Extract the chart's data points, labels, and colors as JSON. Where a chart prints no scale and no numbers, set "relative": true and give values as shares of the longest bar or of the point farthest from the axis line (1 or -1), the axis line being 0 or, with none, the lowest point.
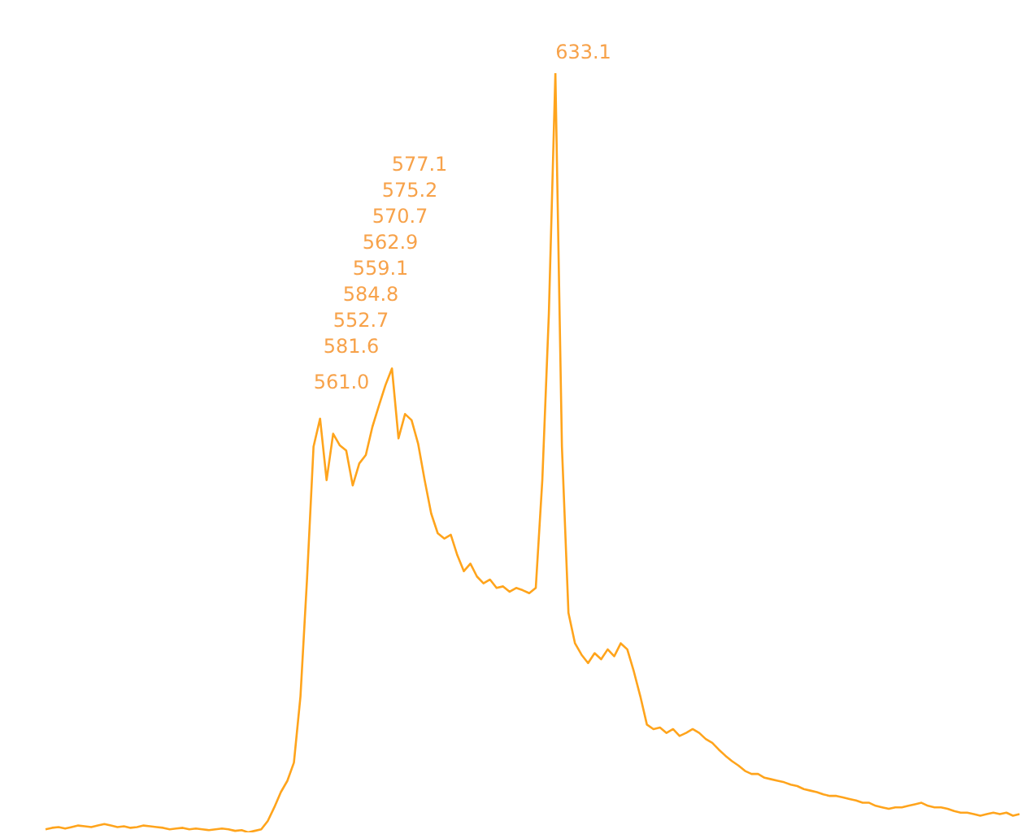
{
  "chart_data": {
    "type": "line",
    "relative": true,
    "tick_labels": false,
    "legend": false,
    "marker": "none",
    "line_style": "solid",
    "categories": [
      null,
      null,
      null,
      null,
      null,
      null,
      null,
      null,
      null,
      null,
      null,
      null,
      null,
      null,
      null,
      null,
      null,
      null,
      null,
      null,
      null,
      null,
      null,
      null,
      null,
      null,
      null,
      null,
      null,
      null,
      null,
      null,
      null,
      null,
      null,
      null,
      null,
      null,
      null,
      null,
      null,
      null,
      null,
      null,
      null,
      null,
      null,
      null,
      null,
      null,
      null,
      null,
      null,
      null,
      null,
      null,
      null,
      null,
      null,
      null,
      null,
      null,
      null,
      null,
      null,
      null,
      null,
      null,
      null,
      null,
      null,
      null,
      null,
      null,
      null,
      null,
      null,
      null,
      null,
      null,
      null,
      null,
      null,
      null,
      null,
      null,
      null,
      null,
      null,
      null,
      null,
      null,
      null,
      null,
      null,
      null,
      null,
      null,
      null,
      null,
      null,
      null,
      null,
      null,
      null,
      null,
      null,
      null,
      null,
      null,
      null,
      null,
      null,
      null,
      null,
      null,
      null,
      null,
      null,
      null,
      null,
      null,
      null,
      null,
      null,
      null,
      null,
      null,
      null,
      null,
      null,
      null,
      null,
      null,
      null,
      null,
      null,
      null,
      null,
      null,
      null,
      null,
      null,
      null,
      null,
      null,
      null,
      null,
      null,
      null
    ],
    "series": [
      {
        "color": "#ffa41c",
        "values": [
          0.004,
          0.006,
          0.007,
          0.005,
          0.007,
          0.009,
          0.008,
          0.007,
          0.009,
          0.011,
          0.009,
          0.007,
          0.008,
          0.006,
          0.007,
          0.009,
          0.008,
          0.007,
          0.006,
          0.004,
          0.005,
          0.006,
          0.004,
          0.005,
          0.004,
          0.003,
          0.004,
          0.005,
          0.004,
          0.002,
          0.003,
          0,
          0.002,
          0.004,
          0.015,
          0.033,
          0.053,
          0.068,
          0.092,
          0.179,
          0.333,
          0.508,
          0.545,
          0.464,
          0.525,
          0.51,
          0.503,
          0.457,
          0.486,
          0.497,
          0.534,
          0.562,
          0.589,
          0.611,
          0.519,
          0.551,
          0.543,
          0.512,
          0.464,
          0.42,
          0.394,
          0.387,
          0.392,
          0.365,
          0.344,
          0.354,
          0.337,
          0.328,
          0.333,
          0.322,
          0.324,
          0.317,
          0.322,
          0.319,
          0.315,
          0.322,
          0.464,
          0.683,
          1,
          0.508,
          0.289,
          0.249,
          0.234,
          0.223,
          0.236,
          0.228,
          0.241,
          0.232,
          0.249,
          0.241,
          0.212,
          0.179,
          0.142,
          0.136,
          0.138,
          0.131,
          0.136,
          0.127,
          0.131,
          0.136,
          0.131,
          0.123,
          0.118,
          0.109,
          0.101,
          0.094,
          0.088,
          0.081,
          0.077,
          0.077,
          0.072,
          0.07,
          0.068,
          0.066,
          0.063,
          0.061,
          0.057,
          0.055,
          0.053,
          0.05,
          0.048,
          0.048,
          0.046,
          0.044,
          0.042,
          0.039,
          0.039,
          0.035,
          0.033,
          0.031,
          0.033,
          0.033,
          0.035,
          0.037,
          0.039,
          0.035,
          0.033,
          0.033,
          0.031,
          0.028,
          0.026,
          0.026,
          0.024,
          0.022,
          0.024,
          0.026,
          0.024,
          0.026,
          0.022,
          0.024
        ]
      }
    ],
    "annotations": [
      "633.1",
      "577.1",
      "575.2",
      "570.7",
      "562.9",
      "559.1",
      "584.8",
      "552.7",
      "581.6",
      "561.0"
    ]
  }
}
